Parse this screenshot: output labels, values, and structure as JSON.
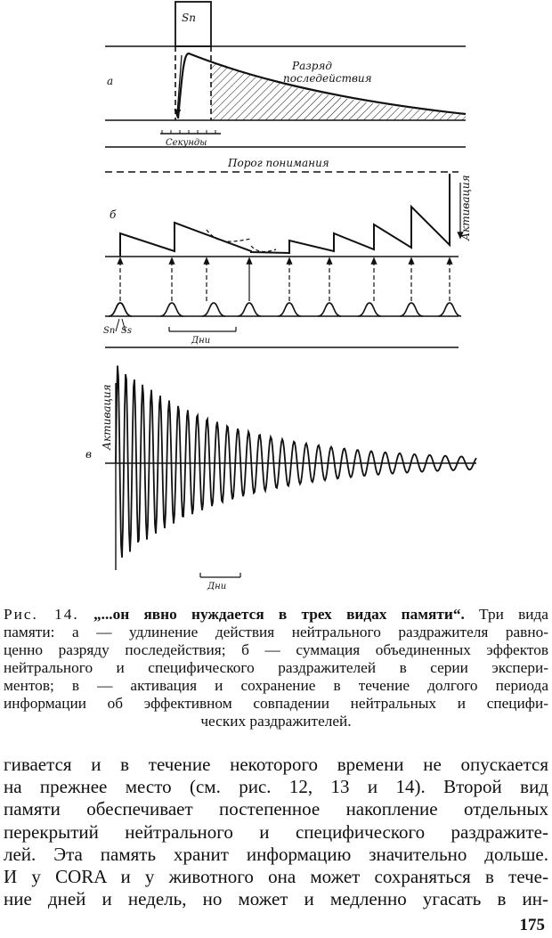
{
  "figure": {
    "panel_a": {
      "letter": "а",
      "stimulus": "Sn",
      "label_line1": "Разряд",
      "label_line2": "последействия",
      "scale": "Секунды"
    },
    "panel_b": {
      "letter": "б",
      "threshold": "Порог понимания",
      "axis": "Активация",
      "stim_n": "Sn",
      "stim_s": "Ss",
      "scale": "Дни"
    },
    "panel_c": {
      "letter": "в",
      "axis": "Активация",
      "scale": "Дни"
    }
  },
  "caption": {
    "lead": "Рис. 14.",
    "title": "„...он явно нуждается в трех видах памяти“.",
    "line1_rest": "Три вида",
    "lines": [
      "памяти: а — удлинение действия нейтрального раздражителя равно-",
      "ценно разряду последействия; б — суммация объединенных эффектов",
      "нейтрального и специфического раздражителей в серии экспери-",
      "ментов; в — активация и сохранение в течение долгого периода",
      "информации об эффективном совпадении нейтральных и специфи-",
      "ческих раздражителей."
    ]
  },
  "body": {
    "lines": [
      "гивается и в течение некоторого времени не опускается",
      "на прежнее место (см. рис. 12, 13 и 14). Второй вид",
      "памяти обеспечивает постепенное накопление отдельных",
      "перекрытий нейтрального и специфического раздражите-",
      "лей. Эта память хранит информацию значительно дольше.",
      "И у CORA и у животного она может сохраняться в тече-",
      "ние дней и недель, но может и медленно угасать в ин-"
    ]
  },
  "page_number": "175"
}
